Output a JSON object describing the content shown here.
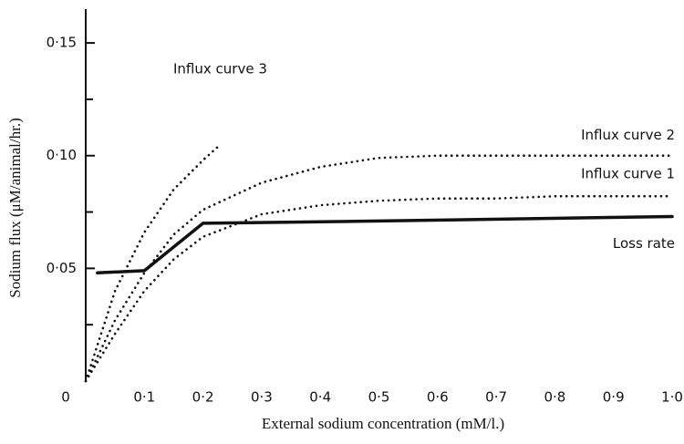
{
  "chart_data": {
    "type": "line",
    "x_label": "External sodium concentration (mM/l.)",
    "y_label": "Sodium flux (μM/animal/hr.)",
    "xlim": [
      0,
      1.0
    ],
    "ylim": [
      0,
      0.165
    ],
    "xticks": [
      0,
      {
        "value": 0.1,
        "label": "0·1"
      },
      {
        "value": 0.2,
        "label": "0·2"
      },
      {
        "value": 0.3,
        "label": "0·3"
      },
      {
        "value": 0.4,
        "label": "0·4"
      },
      {
        "value": 0.5,
        "label": "0·5"
      },
      {
        "value": 0.6,
        "label": "0·6"
      },
      {
        "value": 0.7,
        "label": "0·7"
      },
      {
        "value": 0.8,
        "label": "0·8"
      },
      {
        "value": 0.9,
        "label": "0·9"
      },
      {
        "value": 1.0,
        "label": "1·0"
      }
    ],
    "yticks": [
      {
        "value": 0.05,
        "label": "0·05"
      },
      {
        "value": 0.1,
        "label": "0·10"
      },
      {
        "value": 0.15,
        "label": "0·15"
      }
    ],
    "y_minor_ticks": [
      0.025,
      0.075,
      0.125
    ],
    "series": [
      {
        "name": "Influx curve 3",
        "color": "#111111",
        "style": "dotted",
        "x": [
          0,
          0.05,
          0.1,
          0.15,
          0.2,
          0.23
        ],
        "values": [
          0,
          0.04,
          0.066,
          0.085,
          0.098,
          0.105
        ]
      },
      {
        "name": "Influx curve 2",
        "color": "#111111",
        "style": "dotted",
        "x": [
          0,
          0.05,
          0.1,
          0.15,
          0.2,
          0.3,
          0.4,
          0.5,
          0.6,
          0.7,
          0.8,
          0.9,
          1.0
        ],
        "values": [
          0,
          0.027,
          0.048,
          0.065,
          0.076,
          0.088,
          0.095,
          0.099,
          0.1,
          0.1,
          0.1,
          0.1,
          0.1
        ]
      },
      {
        "name": "Influx curve 1",
        "color": "#111111",
        "style": "dotted",
        "x": [
          0,
          0.05,
          0.1,
          0.15,
          0.2,
          0.3,
          0.4,
          0.5,
          0.6,
          0.7,
          0.8,
          0.9,
          1.0
        ],
        "values": [
          0,
          0.021,
          0.04,
          0.054,
          0.064,
          0.074,
          0.078,
          0.08,
          0.081,
          0.081,
          0.082,
          0.082,
          0.082
        ]
      },
      {
        "name": "Loss rate",
        "color": "#111111",
        "style": "solid",
        "x": [
          0.02,
          0.1,
          0.2,
          0.5,
          1.0
        ],
        "values": [
          0.048,
          0.049,
          0.07,
          0.071,
          0.073
        ]
      }
    ]
  }
}
